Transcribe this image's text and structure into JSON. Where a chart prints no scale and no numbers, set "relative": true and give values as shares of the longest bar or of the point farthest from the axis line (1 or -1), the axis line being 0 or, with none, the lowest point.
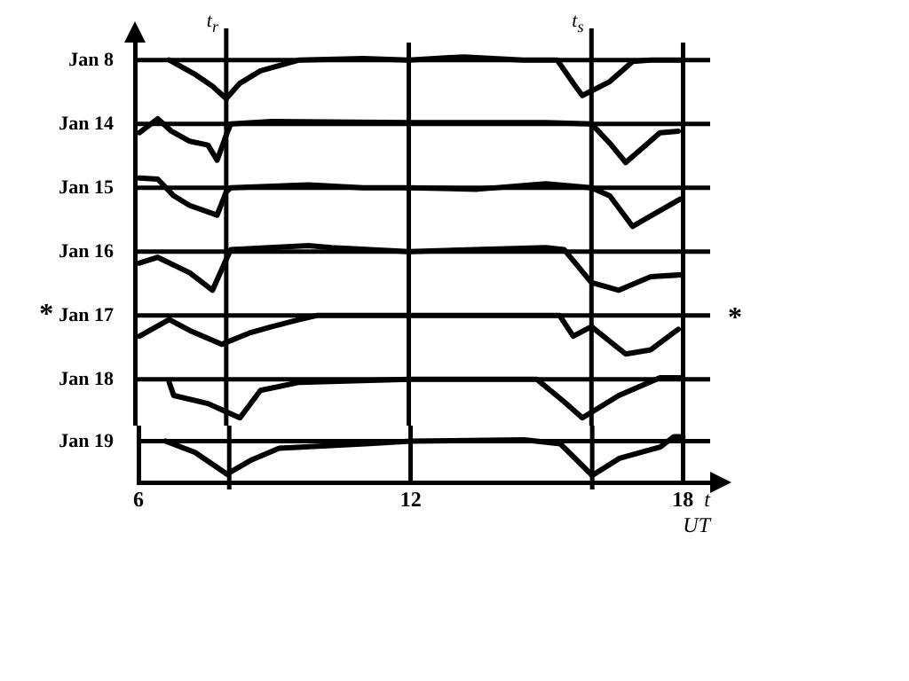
{
  "chart_data": [
    {
      "type": "line",
      "ylabel": "Jan 8",
      "relative": true,
      "xlim": [
        6,
        18.6
      ],
      "xticks": [
        6,
        12,
        18
      ],
      "tick_labels": false,
      "grid": "x",
      "color": "#000000",
      "ref_lines": [
        {
          "axis": "x",
          "value": 8,
          "label": "t$_{r}$"
        },
        {
          "axis": "x",
          "value": 16,
          "label": "t$_{s}$"
        }
      ],
      "x": [
        6.75,
        7.3,
        7.7,
        8.0,
        8.3,
        8.75,
        9.6,
        11,
        12,
        13.2,
        14.5,
        15.25,
        15.6,
        15.8,
        16.4,
        16.9,
        17.3,
        18
      ],
      "values": [
        0,
        -0.36,
        -0.68,
        -1,
        -0.6,
        -0.28,
        0,
        0.04,
        0,
        0.08,
        0,
        0,
        -0.6,
        -0.92,
        -0.56,
        -0.04,
        0,
        0
      ]
    },
    {
      "type": "line",
      "ylabel": "Jan 14",
      "relative": true,
      "xlim": [
        6,
        18.6
      ],
      "xticks": [
        6,
        12,
        18
      ],
      "tick_labels": false,
      "grid": "x",
      "color": "#000000",
      "ref_lines": [
        {
          "axis": "x",
          "value": 8
        },
        {
          "axis": "x",
          "value": 16
        }
      ],
      "x": [
        6.1,
        6.5,
        6.8,
        7.2,
        7.6,
        7.8,
        8.0,
        8.1,
        9,
        12,
        15,
        16,
        16.4,
        16.75,
        17.5,
        17.9
      ],
      "values": [
        -0.23,
        0.13,
        -0.19,
        -0.45,
        -0.55,
        -0.94,
        -0.29,
        0,
        0.06,
        0.03,
        0.03,
        0,
        -0.5,
        -1,
        -0.23,
        -0.19
      ]
    },
    {
      "type": "line",
      "ylabel": "Jan 15",
      "relative": true,
      "xlim": [
        6,
        18.6
      ],
      "xticks": [
        6,
        12,
        18
      ],
      "tick_labels": false,
      "grid": "x",
      "color": "#000000",
      "ref_lines": [
        {
          "axis": "x",
          "value": 8
        },
        {
          "axis": "x",
          "value": 16
        }
      ],
      "x": [
        6.1,
        6.5,
        6.85,
        7.2,
        7.8,
        8.0,
        8.1,
        9.8,
        11,
        12,
        13.5,
        15,
        16,
        16.4,
        16.9,
        17.95
      ],
      "values": [
        0.25,
        0.22,
        -0.21,
        -0.46,
        -0.71,
        -0.11,
        0,
        0.07,
        0,
        0,
        -0.04,
        0.1,
        0,
        -0.21,
        -1,
        -0.29
      ]
    },
    {
      "type": "line",
      "ylabel": "Jan 16",
      "relative": true,
      "xlim": [
        6,
        18.6
      ],
      "xticks": [
        6,
        12,
        18
      ],
      "tick_labels": false,
      "grid": "x",
      "color": "#000000",
      "ref_lines": [
        {
          "axis": "x",
          "value": 8
        },
        {
          "axis": "x",
          "value": 16
        }
      ],
      "x": [
        6.1,
        6.5,
        7.2,
        7.7,
        8.0,
        8.1,
        9.8,
        10.3,
        12,
        15,
        15.4,
        16.0,
        16.6,
        17.3,
        18
      ],
      "values": [
        -0.3,
        -0.15,
        -0.55,
        -1,
        -0.2,
        0.05,
        0.15,
        0.1,
        0,
        0.1,
        0.05,
        -0.8,
        -1,
        -0.65,
        -0.6
      ]
    },
    {
      "type": "line",
      "ylabel": "Jan 17",
      "relative": true,
      "xlim": [
        6,
        18.6
      ],
      "xticks": [
        6,
        12,
        18
      ],
      "tick_labels": false,
      "grid": "x",
      "color": "#000000",
      "annotations": [
        "*",
        "*"
      ],
      "ref_lines": [
        {
          "axis": "x",
          "value": 8
        },
        {
          "axis": "x",
          "value": 16
        }
      ],
      "x": [
        6.1,
        6.75,
        7.2,
        7.9,
        8.5,
        9,
        9.6,
        10,
        12,
        15.3,
        15.6,
        16,
        16.75,
        17.3,
        17.9
      ],
      "values": [
        -0.54,
        -0.11,
        -0.39,
        -0.75,
        -0.46,
        -0.29,
        -0.11,
        0,
        0,
        0,
        -0.54,
        -0.29,
        -1,
        -0.89,
        -0.36
      ]
    },
    {
      "type": "line",
      "ylabel": "Jan 18",
      "relative": true,
      "xlim": [
        6,
        18.6
      ],
      "xticks": [
        6,
        12,
        18
      ],
      "tick_labels": false,
      "grid": "x",
      "color": "#000000",
      "ref_lines": [
        {
          "axis": "x",
          "value": 8
        },
        {
          "axis": "x",
          "value": 16
        }
      ],
      "x": [
        6.75,
        6.85,
        7.6,
        8.3,
        8.75,
        9.6,
        12,
        14.8,
        15.4,
        15.8,
        16.6,
        17.5,
        18
      ],
      "values": [
        -0.08,
        -0.42,
        -0.63,
        -1,
        -0.29,
        -0.08,
        0,
        0,
        -0.58,
        -1,
        -0.42,
        0.04,
        0.04
      ]
    },
    {
      "type": "line",
      "ylabel": "Jan 19",
      "xlabel": "t\nUT",
      "relative": true,
      "xlim": [
        6,
        18.6
      ],
      "xticks": [
        6,
        12,
        18
      ],
      "tick_labels": "x",
      "grid": "x",
      "color": "#000000",
      "ref_lines": [
        {
          "axis": "x",
          "value": 8
        },
        {
          "axis": "x",
          "value": 16
        }
      ],
      "x": [
        6.6,
        7.25,
        7.95,
        8.5,
        9.1,
        11,
        12,
        14.5,
        15.3,
        16,
        16.6,
        17.5,
        17.8,
        18
      ],
      "values": [
        0,
        -0.33,
        -0.96,
        -0.54,
        -0.21,
        -0.08,
        0,
        0.04,
        -0.08,
        -1,
        -0.5,
        -0.17,
        0.13,
        0.13
      ]
    }
  ]
}
